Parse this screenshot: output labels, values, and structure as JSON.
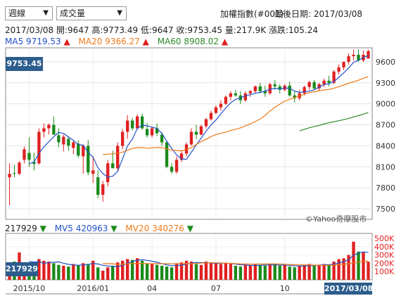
{
  "controls": {
    "period_select": "週線",
    "indicator_select": "成交量"
  },
  "info": {
    "title": "加權指數(#001)",
    "last_date_text": "最後日期: 2017/03/08"
  },
  "quote": {
    "date": "2017/03/08",
    "open": "開:9647",
    "high": "高:9773.49",
    "low": "低:9647",
    "close": "收:9753.45",
    "volume": "量:217.9K",
    "change": "漲跌:105.24"
  },
  "ma_legend": [
    {
      "label": "MA5 9719.53",
      "arrow": "▲",
      "color": "#2050c8"
    },
    {
      "label": "MA20 9366.27",
      "arrow": "▲",
      "color": "#ef7a18"
    },
    {
      "label": "MA60 8908.02",
      "arrow": "▲",
      "color": "#2a8a2a"
    }
  ],
  "vol_legend": [
    {
      "label": "217929",
      "arrow": "▼",
      "color": "#222222"
    },
    {
      "label": "MV5 420963",
      "arrow": "▼",
      "color": "#2050c8"
    },
    {
      "label": "MV20 340276",
      "arrow": "▼",
      "color": "#ef7a18"
    }
  ],
  "tags": {
    "last_close": "9753.45",
    "last_volume": "217929",
    "last_date": "2017/03/08"
  },
  "watermark": "©Yahoo奇摩股市",
  "colors": {
    "up": "#e02020",
    "down": "#1a8a1a",
    "ma5": "#2050c8",
    "ma20": "#ef7a18",
    "ma60": "#2a8a2a",
    "axis_up_label": "#e02020",
    "tag_bg": "#2c5d8d"
  },
  "chart_data": {
    "type": "candlestick",
    "title": "加權指數(#001)",
    "price_axis": {
      "ticks": [
        7500,
        7800,
        8100,
        8400,
        8700,
        9000,
        9300,
        9600
      ],
      "ylim": [
        7350,
        9800
      ]
    },
    "volume_axis": {
      "ticks": [
        "100K",
        "200K",
        "300K",
        "400K",
        "500K"
      ],
      "ylim": [
        0,
        560
      ]
    },
    "x_tick_labels": [
      "2015/10",
      "2016/01",
      "04",
      "07",
      "10"
    ],
    "x_tick_index": [
      4,
      17,
      29,
      42,
      56
    ],
    "candles": [
      [
        7950,
        8150,
        7550,
        8000,
        200
      ],
      [
        8010,
        8130,
        7950,
        8000,
        220
      ],
      [
        8000,
        8180,
        7980,
        8160,
        330
      ],
      [
        8200,
        8390,
        8150,
        8350,
        190
      ],
      [
        8300,
        8520,
        8100,
        8200,
        170
      ],
      [
        8170,
        8300,
        8050,
        8140,
        160
      ],
      [
        8150,
        8650,
        8130,
        8600,
        250
      ],
      [
        8600,
        8720,
        8520,
        8650,
        230
      ],
      [
        8650,
        8720,
        8560,
        8700,
        220
      ],
      [
        8700,
        8820,
        8560,
        8560,
        200
      ],
      [
        8550,
        8650,
        8380,
        8450,
        180
      ],
      [
        8420,
        8560,
        8320,
        8530,
        170
      ],
      [
        8500,
        8540,
        8330,
        8400,
        160
      ],
      [
        8370,
        8480,
        8280,
        8450,
        190
      ],
      [
        8430,
        8480,
        8230,
        8260,
        180
      ],
      [
        8250,
        8420,
        8000,
        8400,
        200
      ],
      [
        8400,
        8480,
        7980,
        8020,
        190
      ],
      [
        8000,
        8250,
        7870,
        8050,
        230
      ],
      [
        7950,
        8050,
        7650,
        7700,
        150
      ],
      [
        7700,
        7900,
        7600,
        7850,
        110
      ],
      [
        7880,
        8200,
        7820,
        8150,
        150
      ],
      [
        8150,
        8330,
        8080,
        8080,
        170
      ],
      [
        8080,
        8450,
        8050,
        8400,
        210
      ],
      [
        8400,
        8640,
        8350,
        8600,
        230
      ],
      [
        8600,
        8840,
        8500,
        8760,
        250
      ],
      [
        8760,
        8800,
        8620,
        8650,
        240
      ],
      [
        8650,
        8850,
        8640,
        8820,
        260
      ],
      [
        8820,
        8860,
        8630,
        8650,
        230
      ],
      [
        8640,
        8730,
        8520,
        8550,
        200
      ],
      [
        8550,
        8680,
        8520,
        8650,
        190
      ],
      [
        8650,
        8720,
        8540,
        8580,
        180
      ],
      [
        8560,
        8600,
        8400,
        8450,
        170
      ],
      [
        8450,
        8470,
        8080,
        8100,
        160
      ],
      [
        8100,
        8150,
        8000,
        8030,
        150
      ],
      [
        8030,
        8250,
        8000,
        8200,
        200
      ],
      [
        8200,
        8330,
        8170,
        8290,
        210
      ],
      [
        8290,
        8450,
        8250,
        8420,
        230
      ],
      [
        8420,
        8650,
        8400,
        8600,
        220
      ],
      [
        8600,
        8700,
        8500,
        8560,
        190
      ],
      [
        8560,
        8700,
        8550,
        8680,
        180
      ],
      [
        8680,
        8800,
        8650,
        8780,
        220
      ],
      [
        8780,
        8900,
        8760,
        8870,
        200
      ],
      [
        8870,
        8980,
        8850,
        8950,
        200
      ],
      [
        8950,
        9050,
        8900,
        9000,
        190
      ],
      [
        9000,
        9120,
        8980,
        9100,
        200
      ],
      [
        9100,
        9180,
        9050,
        9150,
        190
      ],
      [
        9150,
        9200,
        9100,
        9120,
        170
      ],
      [
        9120,
        9180,
        9000,
        9050,
        160
      ],
      [
        9050,
        9180,
        9030,
        9150,
        180
      ],
      [
        9150,
        9200,
        9100,
        9180,
        170
      ],
      [
        9180,
        9260,
        9150,
        9250,
        190
      ],
      [
        9250,
        9300,
        9150,
        9180,
        180
      ],
      [
        9180,
        9260,
        9100,
        9150,
        170
      ],
      [
        9150,
        9300,
        9130,
        9280,
        190
      ],
      [
        9280,
        9340,
        9200,
        9250,
        180
      ],
      [
        9250,
        9280,
        9150,
        9200,
        170
      ],
      [
        9200,
        9280,
        9180,
        9260,
        180
      ],
      [
        9260,
        9320,
        9100,
        9120,
        160
      ],
      [
        9120,
        9180,
        9020,
        9080,
        150
      ],
      [
        9080,
        9200,
        9050,
        9150,
        170
      ],
      [
        9150,
        9260,
        9120,
        9240,
        180
      ],
      [
        9240,
        9330,
        9200,
        9310,
        190
      ],
      [
        9310,
        9340,
        9200,
        9220,
        170
      ],
      [
        9220,
        9300,
        9180,
        9280,
        180
      ],
      [
        9280,
        9360,
        9240,
        9330,
        190
      ],
      [
        9330,
        9400,
        9250,
        9300,
        180
      ],
      [
        9300,
        9480,
        9280,
        9460,
        220
      ],
      [
        9460,
        9560,
        9420,
        9520,
        250
      ],
      [
        9520,
        9600,
        9480,
        9600,
        260
      ],
      [
        9600,
        9720,
        9560,
        9680,
        300
      ],
      [
        9680,
        9770,
        9620,
        9700,
        460
      ],
      [
        9700,
        9780,
        9600,
        9620,
        340
      ],
      [
        9620,
        9760,
        9600,
        9700,
        330
      ],
      [
        9647,
        9773.49,
        9647,
        9753.45,
        217.9
      ]
    ]
  }
}
